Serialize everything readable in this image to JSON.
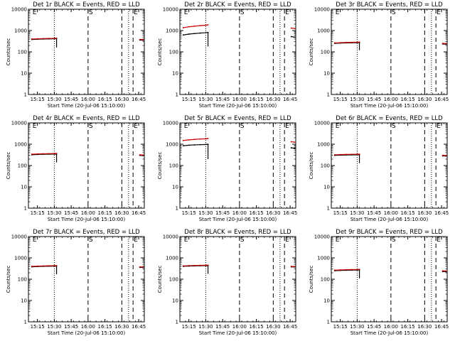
{
  "chart_data": [
    {
      "type": "line",
      "title": "Det 1r BLACK = Events, RED = LLD",
      "ylabel": "Counts/sec",
      "xlabel": "Start Time (20-Jul-06 15:10:00)",
      "x_ticks": [
        "15:15",
        "15:30",
        "15:45",
        "16:00",
        "16:15",
        "16:30",
        "16:45"
      ],
      "y_ticks": [
        "1",
        "10",
        "100",
        "1000",
        "10000"
      ],
      "yscale": "log",
      "ylim": [
        1,
        10000
      ],
      "xlim_minutes": [
        -3,
        100
      ],
      "dotted_lines": [
        20,
        86
      ],
      "dashed_lines": [
        50,
        80,
        90
      ],
      "markers": [
        {
          "label": "E",
          "x": 0
        },
        {
          "label": "S",
          "x": 50
        },
        {
          "label": "E",
          "x": 90
        }
      ],
      "series": [
        {
          "color": "#000000",
          "segments": [
            {
              "x": [
                0,
                5,
                10,
                15,
                20,
                22
              ],
              "y": [
                380,
                392,
                400,
                405,
                410,
                415
              ],
              "drop_to": 160
            },
            {
              "x": [
                96,
                99
              ],
              "y": [
                360,
                352
              ]
            }
          ]
        },
        {
          "color": "#cc0000",
          "segments": [
            {
              "x": [
                0,
                5,
                10,
                15,
                20,
                22
              ],
              "y": [
                400,
                412,
                420,
                426,
                432,
                438
              ]
            },
            {
              "x": [
                96,
                99
              ],
              "y": [
                380,
                372
              ]
            }
          ]
        }
      ]
    },
    {
      "type": "line",
      "title": "Det 2r BLACK = Events, RED = LLD",
      "ylabel": "Counts/sec",
      "xlabel": "Start Time (20-Jul-06 15:10:00)",
      "x_ticks": [
        "15:15",
        "15:30",
        "15:45",
        "16:00",
        "16:15",
        "16:30",
        "16:45"
      ],
      "y_ticks": [
        "1",
        "10",
        "100",
        "1000",
        "10000"
      ],
      "yscale": "log",
      "ylim": [
        1,
        10000
      ],
      "xlim_minutes": [
        -3,
        100
      ],
      "dotted_lines": [
        20,
        86
      ],
      "dashed_lines": [
        50,
        80,
        90
      ],
      "markers": [
        {
          "label": "E",
          "x": 0
        },
        {
          "label": "S",
          "x": 50
        },
        {
          "label": "E",
          "x": 90
        }
      ],
      "series": [
        {
          "color": "#000000",
          "segments": [
            {
              "x": [
                0,
                5,
                10,
                15,
                20,
                22
              ],
              "y": [
                620,
                680,
                720,
                760,
                790,
                810
              ],
              "drop_to": 180
            },
            {
              "x": [
                96,
                99
              ],
              "y": [
                520,
                490
              ]
            }
          ]
        },
        {
          "color": "#cc0000",
          "segments": [
            {
              "x": [
                0,
                5,
                10,
                15,
                20,
                22
              ],
              "y": [
                1350,
                1500,
                1600,
                1700,
                1780,
                1850
              ]
            },
            {
              "x": [
                96,
                99
              ],
              "y": [
                1300,
                1250
              ]
            }
          ]
        }
      ]
    },
    {
      "type": "line",
      "title": "Det 3r BLACK = Events, RED = LLD",
      "ylabel": "Counts/sec",
      "xlabel": "Start Time (20-Jul-06 15:10:00)",
      "x_ticks": [
        "15:15",
        "15:30",
        "15:45",
        "16:00",
        "16:15",
        "16:30",
        "16:45"
      ],
      "y_ticks": [
        "1",
        "10",
        "100",
        "1000",
        "10000"
      ],
      "yscale": "log",
      "ylim": [
        1,
        10000
      ],
      "xlim_minutes": [
        -3,
        100
      ],
      "dotted_lines": [
        20,
        86
      ],
      "dashed_lines": [
        50,
        80,
        90
      ],
      "markers": [
        {
          "label": "E",
          "x": 0
        },
        {
          "label": "S",
          "x": 50
        },
        {
          "label": "E",
          "x": 90
        }
      ],
      "series": [
        {
          "color": "#000000",
          "segments": [
            {
              "x": [
                0,
                5,
                10,
                15,
                20,
                22
              ],
              "y": [
                250,
                258,
                263,
                266,
                270,
                272
              ],
              "drop_to": 120
            },
            {
              "x": [
                96,
                99
              ],
              "y": [
                235,
                230
              ]
            }
          ]
        },
        {
          "color": "#cc0000",
          "segments": [
            {
              "x": [
                0,
                5,
                10,
                15,
                20,
                22
              ],
              "y": [
                262,
                270,
                276,
                280,
                284,
                288
              ]
            },
            {
              "x": [
                96,
                99
              ],
              "y": [
                250,
                244
              ]
            }
          ]
        }
      ]
    },
    {
      "type": "line",
      "title": "Det 4r BLACK = Events, RED = LLD",
      "ylabel": "Counts/sec",
      "xlabel": "Start Time (20-Jul-06 15:10:00)",
      "x_ticks": [
        "15:15",
        "15:30",
        "15:45",
        "16:00",
        "16:15",
        "16:30",
        "16:45"
      ],
      "y_ticks": [
        "1",
        "10",
        "100",
        "1000",
        "10000"
      ],
      "yscale": "log",
      "ylim": [
        1,
        10000
      ],
      "xlim_minutes": [
        -3,
        100
      ],
      "dotted_lines": [
        20,
        86
      ],
      "dashed_lines": [
        50,
        80,
        90
      ],
      "markers": [
        {
          "label": "E",
          "x": 0
        },
        {
          "label": "S",
          "x": 50
        },
        {
          "label": "E",
          "x": 90
        }
      ],
      "series": [
        {
          "color": "#000000",
          "segments": [
            {
              "x": [
                0,
                5,
                10,
                15,
                20,
                22
              ],
              "y": [
                320,
                330,
                338,
                342,
                345,
                348
              ],
              "drop_to": 140
            },
            {
              "x": [
                96,
                99
              ],
              "y": [
                300,
                292
              ]
            }
          ]
        },
        {
          "color": "#cc0000",
          "segments": [
            {
              "x": [
                0,
                5,
                10,
                15,
                20,
                22
              ],
              "y": [
                340,
                350,
                356,
                360,
                365,
                368
              ]
            },
            {
              "x": [
                96,
                99
              ],
              "y": [
                318,
                310
              ]
            }
          ]
        }
      ]
    },
    {
      "type": "line",
      "title": "Det 5r BLACK = Events, RED = LLD",
      "ylabel": "Counts/sec",
      "xlabel": "Start Time (20-Jul-06 15:10:00)",
      "x_ticks": [
        "15:15",
        "15:30",
        "15:45",
        "16:00",
        "16:15",
        "16:30",
        "16:45"
      ],
      "y_ticks": [
        "1",
        "10",
        "100",
        "1000",
        "10000"
      ],
      "yscale": "log",
      "ylim": [
        1,
        10000
      ],
      "xlim_minutes": [
        -3,
        100
      ],
      "dotted_lines": [
        20,
        86
      ],
      "dashed_lines": [
        50,
        80,
        90
      ],
      "markers": [
        {
          "label": "E",
          "x": 0
        },
        {
          "label": "S",
          "x": 50
        },
        {
          "label": "E",
          "x": 90
        }
      ],
      "series": [
        {
          "color": "#000000",
          "segments": [
            {
              "x": [
                0,
                5,
                10,
                15,
                20,
                22
              ],
              "y": [
                850,
                900,
                930,
                950,
                970,
                990
              ],
              "drop_to": 200
            },
            {
              "x": [
                96,
                99
              ],
              "y": [
                680,
                640
              ]
            }
          ]
        },
        {
          "color": "#cc0000",
          "segments": [
            {
              "x": [
                0,
                5,
                10,
                15,
                20,
                22
              ],
              "y": [
                1500,
                1600,
                1680,
                1750,
                1800,
                1850
              ]
            },
            {
              "x": [
                96,
                99
              ],
              "y": [
                1300,
                1250
              ]
            }
          ]
        }
      ]
    },
    {
      "type": "line",
      "title": "Det 6r BLACK = Events, RED = LLD",
      "ylabel": "Counts/sec",
      "xlabel": "Start Time (20-Jul-06 15:10:00)",
      "x_ticks": [
        "15:15",
        "15:30",
        "15:45",
        "16:00",
        "16:15",
        "16:30",
        "16:45"
      ],
      "y_ticks": [
        "1",
        "10",
        "100",
        "1000",
        "10000"
      ],
      "yscale": "log",
      "ylim": [
        1,
        10000
      ],
      "xlim_minutes": [
        -3,
        100
      ],
      "dotted_lines": [
        20,
        86
      ],
      "dashed_lines": [
        50,
        80,
        90
      ],
      "markers": [
        {
          "label": "E",
          "x": 0
        },
        {
          "label": "S",
          "x": 50
        },
        {
          "label": "E",
          "x": 90
        }
      ],
      "series": [
        {
          "color": "#000000",
          "segments": [
            {
              "x": [
                0,
                5,
                10,
                15,
                20,
                22
              ],
              "y": [
                300,
                308,
                313,
                316,
                318,
                320
              ],
              "drop_to": 130
            },
            {
              "x": [
                96,
                99
              ],
              "y": [
                285,
                280
              ]
            }
          ]
        },
        {
          "color": "#cc0000",
          "segments": [
            {
              "x": [
                0,
                5,
                10,
                15,
                20,
                22
              ],
              "y": [
                318,
                326,
                332,
                336,
                340,
                342
              ]
            },
            {
              "x": [
                96,
                99
              ],
              "y": [
                300,
                296
              ]
            }
          ]
        }
      ]
    },
    {
      "type": "line",
      "title": "Det 7r BLACK = Events, RED = LLD",
      "ylabel": "Counts/sec",
      "xlabel": "Start Time (20-Jul-06 15:10:00)",
      "x_ticks": [
        "15:15",
        "15:30",
        "15:45",
        "16:00",
        "16:15",
        "16:30",
        "16:45"
      ],
      "y_ticks": [
        "1",
        "10",
        "100",
        "1000",
        "10000"
      ],
      "yscale": "log",
      "ylim": [
        1,
        10000
      ],
      "xlim_minutes": [
        -3,
        100
      ],
      "dotted_lines": [
        20,
        86
      ],
      "dashed_lines": [
        50,
        80,
        90
      ],
      "markers": [
        {
          "label": "E",
          "x": 0
        },
        {
          "label": "S",
          "x": 50
        },
        {
          "label": "E",
          "x": 90
        }
      ],
      "series": [
        {
          "color": "#000000",
          "segments": [
            {
              "x": [
                0,
                5,
                10,
                15,
                20,
                22
              ],
              "y": [
                380,
                392,
                400,
                406,
                410,
                414
              ],
              "drop_to": 170
            },
            {
              "x": [
                96,
                99
              ],
              "y": [
                360,
                354
              ]
            }
          ]
        },
        {
          "color": "#cc0000",
          "segments": [
            {
              "x": [
                0,
                5,
                10,
                15,
                20,
                22
              ],
              "y": [
                400,
                412,
                420,
                426,
                432,
                436
              ]
            },
            {
              "x": [
                96,
                99
              ],
              "y": [
                378,
                370
              ]
            }
          ]
        }
      ]
    },
    {
      "type": "line",
      "title": "Det 8r BLACK = Events, RED = LLD",
      "ylabel": "Counts/sec",
      "xlabel": "Start Time (20-Jul-06 15:10:00)",
      "x_ticks": [
        "15:15",
        "15:30",
        "15:45",
        "16:00",
        "16:15",
        "16:30",
        "16:45"
      ],
      "y_ticks": [
        "1",
        "10",
        "100",
        "1000",
        "10000"
      ],
      "yscale": "log",
      "ylim": [
        1,
        10000
      ],
      "xlim_minutes": [
        -3,
        100
      ],
      "dotted_lines": [
        20,
        86
      ],
      "dashed_lines": [
        50,
        80,
        90
      ],
      "markers": [
        {
          "label": "E",
          "x": 0
        },
        {
          "label": "S",
          "x": 50
        },
        {
          "label": "E",
          "x": 90
        }
      ],
      "series": [
        {
          "color": "#000000",
          "segments": [
            {
              "x": [
                0,
                5,
                10,
                15,
                20,
                22
              ],
              "y": [
                400,
                412,
                420,
                428,
                432,
                436
              ],
              "drop_to": 180
            },
            {
              "x": [
                96,
                99
              ],
              "y": [
                380,
                374
              ]
            }
          ]
        },
        {
          "color": "#cc0000",
          "segments": [
            {
              "x": [
                0,
                5,
                10,
                15,
                20,
                22
              ],
              "y": [
                420,
                432,
                440,
                448,
                454,
                458
              ]
            },
            {
              "x": [
                96,
                99
              ],
              "y": [
                398,
                390
              ]
            }
          ]
        }
      ]
    },
    {
      "type": "line",
      "title": "Det 9r BLACK = Events, RED = LLD",
      "ylabel": "Counts/sec",
      "xlabel": "Start Time (20-Jul-06 15:10:00)",
      "x_ticks": [
        "15:15",
        "15:30",
        "15:45",
        "16:00",
        "16:15",
        "16:30",
        "16:45"
      ],
      "y_ticks": [
        "1",
        "10",
        "100",
        "1000",
        "10000"
      ],
      "yscale": "log",
      "ylim": [
        1,
        10000
      ],
      "xlim_minutes": [
        -3,
        100
      ],
      "dotted_lines": [
        20,
        86
      ],
      "dashed_lines": [
        50,
        80,
        90
      ],
      "markers": [
        {
          "label": "E",
          "x": 0
        },
        {
          "label": "S",
          "x": 50
        },
        {
          "label": "E",
          "x": 90
        }
      ],
      "series": [
        {
          "color": "#000000",
          "segments": [
            {
              "x": [
                0,
                5,
                10,
                15,
                20,
                22
              ],
              "y": [
                250,
                258,
                262,
                266,
                270,
                272
              ],
              "drop_to": 110
            },
            {
              "x": [
                96,
                99
              ],
              "y": [
                230,
                225
              ]
            }
          ]
        },
        {
          "color": "#cc0000",
          "segments": [
            {
              "x": [
                0,
                5,
                10,
                15,
                20,
                22
              ],
              "y": [
                265,
                272,
                278,
                282,
                286,
                290
              ]
            },
            {
              "x": [
                96,
                99
              ],
              "y": [
                248,
                242
              ]
            }
          ]
        }
      ]
    }
  ]
}
